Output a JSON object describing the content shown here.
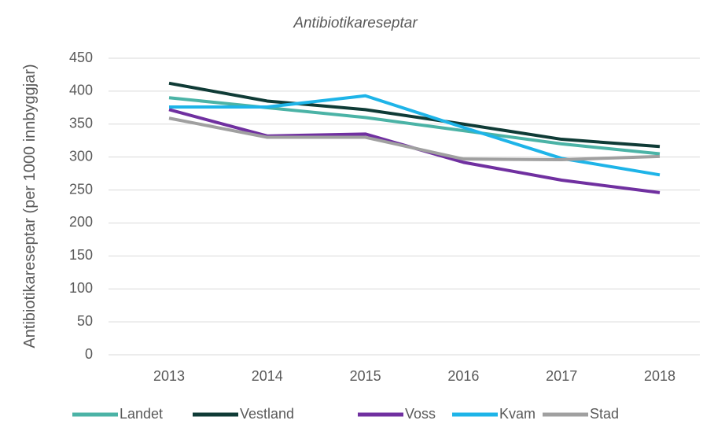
{
  "chart_data": {
    "type": "line",
    "title": "Antibiotikareseptar",
    "y_label": "Antibiotikareseptar (per 1000 innbyggjar)",
    "categories": [
      "2013",
      "2014",
      "2015",
      "2016",
      "2017",
      "2018"
    ],
    "series": [
      {
        "name": "Landet",
        "color": "#4bb3a6",
        "values": [
          390,
          375,
          360,
          340,
          320,
          305
        ]
      },
      {
        "name": "Vestland",
        "color": "#0f3b36",
        "values": [
          412,
          385,
          372,
          350,
          327,
          316
        ]
      },
      {
        "name": "Voss",
        "color": "#7030a0",
        "values": [
          372,
          332,
          335,
          292,
          265,
          246
        ]
      },
      {
        "name": "Kvam",
        "color": "#1eb4e8",
        "values": [
          376,
          376,
          393,
          345,
          298,
          273
        ]
      },
      {
        "name": "Stad",
        "color": "#a0a0a0",
        "values": [
          359,
          330,
          330,
          297,
          296,
          301
        ]
      }
    ],
    "ylim": [
      0,
      450
    ],
    "yticks": [
      0,
      50,
      100,
      150,
      200,
      250,
      300,
      350,
      400,
      450
    ],
    "grid": true,
    "legend": "bottom"
  }
}
